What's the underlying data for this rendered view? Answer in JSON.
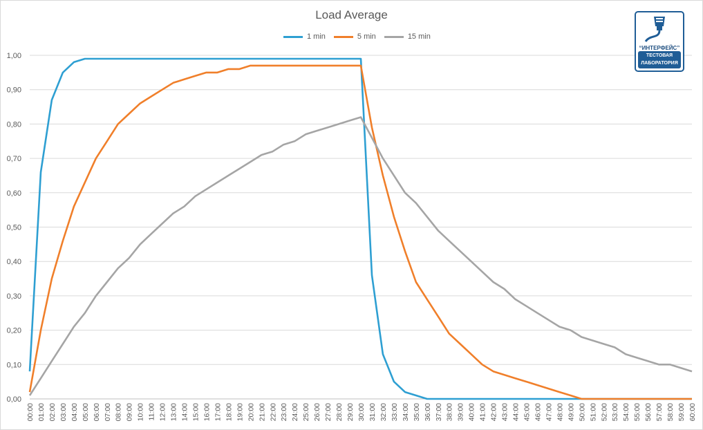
{
  "chart_data": {
    "type": "line",
    "title": "Load Average",
    "legend_position": "top",
    "grid": true,
    "ylim": [
      0,
      1
    ],
    "y_ticks": [
      "0,00",
      "0,10",
      "0,20",
      "0,30",
      "0,40",
      "0,50",
      "0,60",
      "0,70",
      "0,80",
      "0,90",
      "1,00"
    ],
    "x_ticks": [
      "00:00",
      "01:00",
      "02:00",
      "03:00",
      "04:00",
      "05:00",
      "06:00",
      "07:00",
      "08:00",
      "09:00",
      "10:00",
      "11:00",
      "12:00",
      "13:00",
      "14:00",
      "15:00",
      "16:00",
      "17:00",
      "18:00",
      "19:00",
      "20:00",
      "21:00",
      "22:00",
      "23:00",
      "24:00",
      "25:00",
      "26:00",
      "27:00",
      "28:00",
      "29:00",
      "30:00",
      "31:00",
      "32:00",
      "33:00",
      "34:00",
      "35:00",
      "36:00",
      "37:00",
      "38:00",
      "39:00",
      "40:00",
      "41:00",
      "42:00",
      "43:00",
      "44:00",
      "45:00",
      "46:00",
      "47:00",
      "48:00",
      "49:00",
      "50:00",
      "51:00",
      "52:00",
      "53:00",
      "54:00",
      "55:00",
      "56:00",
      "57:00",
      "58:00",
      "59:00",
      "60:00"
    ],
    "series": [
      {
        "name": "1 min",
        "color": "#2e9fd2",
        "values": [
          0.08,
          0.66,
          0.87,
          0.95,
          0.98,
          0.99,
          0.99,
          0.99,
          0.99,
          0.99,
          0.99,
          0.99,
          0.99,
          0.99,
          0.99,
          0.99,
          0.99,
          0.99,
          0.99,
          0.99,
          0.99,
          0.99,
          0.99,
          0.99,
          0.99,
          0.99,
          0.99,
          0.99,
          0.99,
          0.99,
          0.99,
          0.36,
          0.13,
          0.05,
          0.02,
          0.01,
          0,
          0,
          0,
          0,
          0,
          0,
          0,
          0,
          0,
          0,
          0,
          0,
          0,
          0,
          0,
          0,
          0,
          0,
          0,
          0,
          0,
          0,
          0,
          0,
          0
        ]
      },
      {
        "name": "5 min",
        "color": "#f07f2a",
        "values": [
          0.02,
          0.2,
          0.35,
          0.46,
          0.56,
          0.63,
          0.7,
          0.75,
          0.8,
          0.83,
          0.86,
          0.88,
          0.9,
          0.92,
          0.93,
          0.94,
          0.95,
          0.95,
          0.96,
          0.96,
          0.97,
          0.97,
          0.97,
          0.97,
          0.97,
          0.97,
          0.97,
          0.97,
          0.97,
          0.97,
          0.97,
          0.79,
          0.65,
          0.53,
          0.43,
          0.34,
          0.29,
          0.24,
          0.19,
          0.16,
          0.13,
          0.1,
          0.08,
          0.07,
          0.06,
          0.05,
          0.04,
          0.03,
          0.02,
          0.01,
          0,
          0,
          0,
          0,
          0,
          0,
          0,
          0,
          0,
          0,
          0
        ]
      },
      {
        "name": "15 min",
        "color": "#a5a5a5",
        "values": [
          0.01,
          0.06,
          0.11,
          0.16,
          0.21,
          0.25,
          0.3,
          0.34,
          0.38,
          0.41,
          0.45,
          0.48,
          0.51,
          0.54,
          0.56,
          0.59,
          0.61,
          0.63,
          0.65,
          0.67,
          0.69,
          0.71,
          0.72,
          0.74,
          0.75,
          0.77,
          0.78,
          0.79,
          0.8,
          0.81,
          0.82,
          0.76,
          0.7,
          0.65,
          0.6,
          0.57,
          0.53,
          0.49,
          0.46,
          0.43,
          0.4,
          0.37,
          0.34,
          0.32,
          0.29,
          0.27,
          0.25,
          0.23,
          0.21,
          0.2,
          0.18,
          0.17,
          0.16,
          0.15,
          0.13,
          0.12,
          0.11,
          0.1,
          0.1,
          0.09,
          0.08
        ]
      }
    ]
  },
  "logo": {
    "name": "“ИНТЕРФЕЙС”",
    "line1": "ТЕСТОВАЯ",
    "line2": "ЛАБОРАТОРИЯ"
  }
}
